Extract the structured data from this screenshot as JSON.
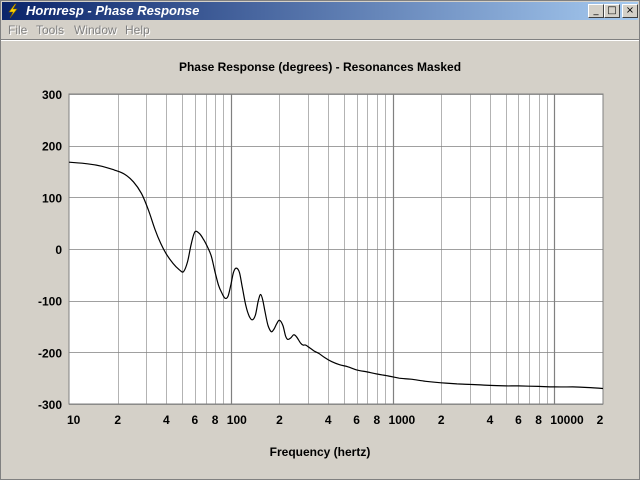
{
  "window": {
    "title": "Hornresp - Phase Response",
    "min_glyph": "_",
    "max_glyph": "□",
    "close_glyph": "×"
  },
  "menu": {
    "items": [
      {
        "label": "File",
        "enabled": false
      },
      {
        "label": "Tools",
        "enabled": false
      },
      {
        "label": "Window",
        "enabled": false
      },
      {
        "label": "Help",
        "enabled": false
      }
    ]
  },
  "colors": {
    "title_gradient_start": "#0a246a",
    "title_gradient_end": "#a6caf0",
    "window_bg": "#d4d0c8",
    "plot_bg": "#ffffff",
    "grid": "#808080",
    "curve": "#000000"
  },
  "chart_data": {
    "type": "line",
    "title": "Phase Response (degrees) - Resonances Masked",
    "xlabel": "Frequency (hertz)",
    "ylabel": "",
    "x_scale": "log",
    "xlim": [
      10,
      20000
    ],
    "ylim": [
      -300,
      300
    ],
    "grid": true,
    "y_ticks": [
      300,
      200,
      100,
      0,
      -100,
      -200,
      -300
    ],
    "x_tick_labels": [
      {
        "x": 10,
        "label": "10"
      },
      {
        "x": 20,
        "label": "2"
      },
      {
        "x": 40,
        "label": "4"
      },
      {
        "x": 60,
        "label": "6"
      },
      {
        "x": 80,
        "label": "8"
      },
      {
        "x": 100,
        "label": "100"
      },
      {
        "x": 200,
        "label": "2"
      },
      {
        "x": 400,
        "label": "4"
      },
      {
        "x": 600,
        "label": "6"
      },
      {
        "x": 800,
        "label": "8"
      },
      {
        "x": 1000,
        "label": "1000"
      },
      {
        "x": 2000,
        "label": "2"
      },
      {
        "x": 4000,
        "label": "4"
      },
      {
        "x": 6000,
        "label": "6"
      },
      {
        "x": 8000,
        "label": "8"
      },
      {
        "x": 10000,
        "label": "10000"
      },
      {
        "x": 20000,
        "label": "2"
      }
    ],
    "series": [
      {
        "x": [
          10,
          13,
          16,
          19,
          22,
          25,
          28,
          31,
          34,
          37,
          40,
          44,
          48,
          51,
          54,
          57,
          60,
          64,
          68,
          72,
          76,
          80,
          84,
          88,
          92,
          96,
          100,
          104,
          108,
          113,
          118,
          124,
          130,
          136,
          142,
          148,
          153,
          158,
          163,
          170,
          178,
          185,
          192,
          200,
          210,
          218,
          225,
          235,
          245,
          255,
          270,
          280,
          290,
          310,
          330,
          350,
          380,
          420,
          470,
          530,
          600,
          700,
          800,
          950,
          1100,
          1300,
          1600,
          2000,
          2500,
          3000,
          3500,
          4000,
          5000,
          6000,
          8000,
          10000,
          13000,
          16000,
          20000
        ],
        "y": [
          168,
          165,
          160,
          153,
          145,
          130,
          108,
          75,
          38,
          10,
          -10,
          -28,
          -40,
          -44,
          -25,
          10,
          33,
          30,
          18,
          3,
          -15,
          -45,
          -70,
          -85,
          -95,
          -92,
          -70,
          -45,
          -37,
          -45,
          -75,
          -110,
          -130,
          -137,
          -128,
          -100,
          -88,
          -100,
          -122,
          -148,
          -160,
          -155,
          -145,
          -138,
          -148,
          -168,
          -175,
          -172,
          -166,
          -170,
          -182,
          -186,
          -186,
          -192,
          -198,
          -202,
          -210,
          -218,
          -224,
          -228,
          -234,
          -238,
          -242,
          -246,
          -250,
          -252,
          -256,
          -259,
          -261,
          -262,
          -263,
          -264,
          -265,
          -265,
          -266,
          -267,
          -267,
          -268,
          -270
        ]
      }
    ]
  }
}
